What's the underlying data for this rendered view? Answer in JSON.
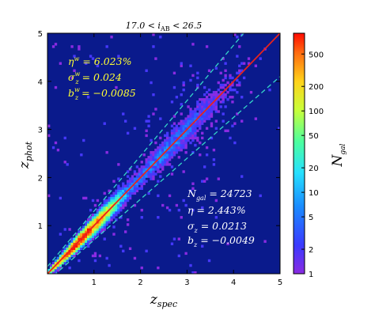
{
  "chart_data": {
    "type": "heatmap",
    "title": "17.0 < i_AB < 26.5",
    "xlabel": "z_spec",
    "ylabel": "z_phot",
    "xlim": [
      0,
      5
    ],
    "ylim": [
      0,
      5
    ],
    "x_ticks": [
      "1",
      "2",
      "3",
      "4",
      "5"
    ],
    "y_ticks": [
      "1",
      "2",
      "3",
      "4",
      "5"
    ],
    "colorbar": {
      "label": "N_gal",
      "scale": "log",
      "range": [
        1,
        900
      ],
      "ticks": [
        "1",
        "2",
        "5",
        "10",
        "20",
        "50",
        "100",
        "200",
        "500"
      ],
      "tick_values": [
        1,
        2,
        5,
        10,
        20,
        50,
        100,
        200,
        500
      ]
    },
    "reference_lines": [
      {
        "kind": "one-to-one",
        "color": "#e8231c",
        "style": "solid"
      },
      {
        "kind": "z_phot = z_spec ± 0.15(1+z_spec)",
        "color": "#35d6c8",
        "style": "dashed"
      }
    ],
    "annotations_top_left": [
      "η^w = 6.023%",
      "σ_z^w = 0.024",
      "b_z^w = −0.0085"
    ],
    "annotations_bottom_right": [
      "N_gal = 24723",
      "η = 2.443%",
      "σ_z = 0.0213",
      "b_z = −0.0049"
    ]
  }
}
